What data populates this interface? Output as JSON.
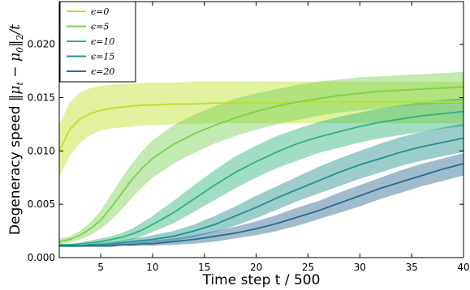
{
  "chart_data": {
    "type": "line",
    "title": "",
    "xlabel": "Time step t / 500",
    "ylabel": "Degeneracy speed ‖μ_t − μ_0‖_2 / t",
    "ylabel_parts": {
      "prefix": "Degeneracy speed ",
      "math": "‖μ",
      "sub1": "t",
      "mid": " − μ",
      "sub2": "0",
      "tail": "‖",
      "sub3": "2",
      "end": "/t"
    },
    "xlim": [
      1,
      40
    ],
    "ylim": [
      0,
      0.024
    ],
    "x_ticks": [
      5,
      10,
      15,
      20,
      25,
      30,
      35,
      40
    ],
    "y_ticks": [
      0.0,
      0.005,
      0.01,
      0.015,
      0.02
    ],
    "y_tick_labels": [
      "0.000",
      "0.005",
      "0.010",
      "0.015",
      "0.020"
    ],
    "grid": false,
    "legend_position": "top-left",
    "x": [
      1,
      2,
      3,
      4,
      5,
      6,
      7,
      8,
      9,
      10,
      12,
      14,
      16,
      18,
      20,
      22,
      24,
      26,
      28,
      30,
      32,
      34,
      36,
      38,
      40
    ],
    "series": [
      {
        "name": "ϵ=0",
        "color": "#bddf26",
        "values": [
          0.01,
          0.012,
          0.013,
          0.0135,
          0.0138,
          0.014,
          0.0141,
          0.0142,
          0.0143,
          0.0143,
          0.0144,
          0.0144,
          0.0145,
          0.0145,
          0.0145,
          0.0145,
          0.0146,
          0.0146,
          0.0146,
          0.0146,
          0.0146,
          0.0146,
          0.0146,
          0.0146,
          0.0146
        ],
        "lower": [
          0.0075,
          0.0095,
          0.0108,
          0.0115,
          0.0119,
          0.0121,
          0.0122,
          0.0123,
          0.0124,
          0.0124,
          0.0125,
          0.0125,
          0.0126,
          0.0126,
          0.0126,
          0.0126,
          0.0126,
          0.0126,
          0.0126,
          0.0126,
          0.0126,
          0.0126,
          0.0126,
          0.0126,
          0.0126
        ],
        "upper": [
          0.0125,
          0.0145,
          0.0155,
          0.0159,
          0.0161,
          0.0162,
          0.0163,
          0.0163,
          0.0164,
          0.0164,
          0.0164,
          0.0165,
          0.0165,
          0.0165,
          0.0165,
          0.0165,
          0.0165,
          0.0165,
          0.0165,
          0.0165,
          0.0165,
          0.0165,
          0.0165,
          0.0165,
          0.0165
        ]
      },
      {
        "name": "ϵ=5",
        "color": "#7ad151",
        "values": [
          0.0015,
          0.0017,
          0.0021,
          0.0027,
          0.0035,
          0.0047,
          0.006,
          0.0073,
          0.0084,
          0.0093,
          0.0106,
          0.0116,
          0.0124,
          0.0131,
          0.0137,
          0.0142,
          0.0146,
          0.0149,
          0.0152,
          0.0154,
          0.0156,
          0.0157,
          0.0158,
          0.0159,
          0.016
        ],
        "lower": [
          0.0013,
          0.0014,
          0.0017,
          0.0021,
          0.0027,
          0.0035,
          0.0045,
          0.0056,
          0.0066,
          0.0075,
          0.0088,
          0.0098,
          0.0107,
          0.0114,
          0.012,
          0.0125,
          0.0129,
          0.0133,
          0.0136,
          0.0138,
          0.014,
          0.0142,
          0.0143,
          0.0144,
          0.0145
        ],
        "upper": [
          0.0018,
          0.002,
          0.0025,
          0.0033,
          0.0044,
          0.0059,
          0.0074,
          0.0088,
          0.01,
          0.011,
          0.0124,
          0.0134,
          0.0142,
          0.0149,
          0.0154,
          0.0158,
          0.0162,
          0.0165,
          0.0167,
          0.0169,
          0.017,
          0.0171,
          0.0172,
          0.0173,
          0.0174
        ]
      },
      {
        "name": "ϵ=10",
        "color": "#2fb47c",
        "values": [
          0.0012,
          0.0012,
          0.0013,
          0.0014,
          0.0015,
          0.0017,
          0.0019,
          0.0022,
          0.0026,
          0.0031,
          0.0042,
          0.0055,
          0.0068,
          0.008,
          0.009,
          0.0099,
          0.0107,
          0.0113,
          0.0118,
          0.0123,
          0.0127,
          0.013,
          0.0133,
          0.0135,
          0.0137
        ],
        "lower": [
          0.0011,
          0.0011,
          0.0012,
          0.0012,
          0.0013,
          0.0014,
          0.0015,
          0.0017,
          0.002,
          0.0024,
          0.0032,
          0.0043,
          0.0054,
          0.0065,
          0.0075,
          0.0084,
          0.0091,
          0.0098,
          0.0103,
          0.0108,
          0.0112,
          0.0115,
          0.0118,
          0.0121,
          0.0123
        ],
        "upper": [
          0.0013,
          0.0013,
          0.0014,
          0.0016,
          0.0018,
          0.002,
          0.0023,
          0.0027,
          0.0033,
          0.0039,
          0.0053,
          0.0068,
          0.0082,
          0.0095,
          0.0105,
          0.0114,
          0.0121,
          0.0127,
          0.0132,
          0.0136,
          0.014,
          0.0143,
          0.0146,
          0.0148,
          0.015
        ]
      },
      {
        "name": "ϵ=15",
        "color": "#21918c",
        "values": [
          0.0011,
          0.0011,
          0.0011,
          0.0012,
          0.0012,
          0.0013,
          0.0014,
          0.0015,
          0.0016,
          0.0017,
          0.002,
          0.0025,
          0.0031,
          0.0039,
          0.0047,
          0.0056,
          0.0064,
          0.0072,
          0.008,
          0.0087,
          0.0093,
          0.0099,
          0.0104,
          0.0108,
          0.0112
        ],
        "lower": [
          0.001,
          0.001,
          0.001,
          0.0011,
          0.0011,
          0.0011,
          0.0012,
          0.0012,
          0.0013,
          0.0014,
          0.0016,
          0.0019,
          0.0024,
          0.003,
          0.0037,
          0.0045,
          0.0053,
          0.006,
          0.0067,
          0.0074,
          0.008,
          0.0086,
          0.0091,
          0.0095,
          0.0099
        ],
        "upper": [
          0.0012,
          0.0012,
          0.0012,
          0.0013,
          0.0014,
          0.0015,
          0.0016,
          0.0018,
          0.0019,
          0.0021,
          0.0025,
          0.0031,
          0.0039,
          0.0048,
          0.0058,
          0.0067,
          0.0076,
          0.0085,
          0.0093,
          0.01,
          0.0107,
          0.0113,
          0.0118,
          0.0122,
          0.0126
        ]
      },
      {
        "name": "ϵ=20",
        "color": "#2c6b8e",
        "values": [
          0.0011,
          0.0011,
          0.0011,
          0.0011,
          0.0011,
          0.0011,
          0.0012,
          0.0012,
          0.0013,
          0.0013,
          0.0015,
          0.0017,
          0.002,
          0.0023,
          0.0027,
          0.0032,
          0.0038,
          0.0044,
          0.0051,
          0.0058,
          0.0065,
          0.0071,
          0.0077,
          0.0083,
          0.0088
        ],
        "lower": [
          0.001,
          0.001,
          0.001,
          0.001,
          0.001,
          0.001,
          0.0011,
          0.0011,
          0.0011,
          0.0011,
          0.0012,
          0.0013,
          0.0015,
          0.0018,
          0.0021,
          0.0025,
          0.003,
          0.0036,
          0.0042,
          0.0048,
          0.0055,
          0.0061,
          0.0067,
          0.0072,
          0.0077
        ],
        "upper": [
          0.0012,
          0.0012,
          0.0012,
          0.0012,
          0.0012,
          0.0013,
          0.0013,
          0.0014,
          0.0015,
          0.0016,
          0.0018,
          0.0021,
          0.0025,
          0.0029,
          0.0034,
          0.004,
          0.0047,
          0.0053,
          0.0061,
          0.0068,
          0.0075,
          0.0082,
          0.0088,
          0.0093,
          0.0098
        ]
      }
    ]
  }
}
